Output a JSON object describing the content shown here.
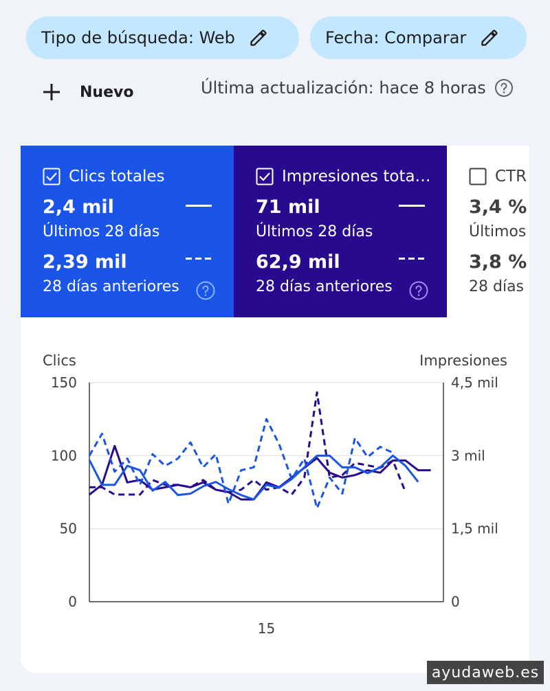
{
  "filters": {
    "search_type": "Tipo de búsqueda: Web",
    "date": "Fecha: Comparar"
  },
  "toolbar": {
    "new_label": "Nuevo",
    "last_update": "Última actualización: hace 8 horas"
  },
  "metrics": {
    "clicks": {
      "label": "Clics totales",
      "checked": true,
      "current_value": "2,4 mil",
      "current_period": "Últimos 28 días",
      "previous_value": "2,39 mil",
      "previous_period": "28 días anteriores",
      "color": "#1a55e8"
    },
    "impressions": {
      "label": "Impresiones tota…",
      "checked": true,
      "current_value": "71 mil",
      "current_period": "Últimos 28 días",
      "previous_value": "62,9 mil",
      "previous_period": "28 días anteriores",
      "color": "#280a8e"
    },
    "ctr": {
      "label": "CTR",
      "checked": false,
      "current_value": "3,4 %",
      "current_period": "Últimos",
      "previous_value": "3,8 %",
      "previous_period": "28 días"
    }
  },
  "chart_data": {
    "type": "line",
    "left_axis": {
      "label": "Clics",
      "ticks": [
        "0",
        "50",
        "100",
        "150"
      ],
      "range": [
        0,
        150
      ]
    },
    "right_axis": {
      "label": "Impresiones",
      "ticks": [
        "0",
        "1,5 mil",
        "3 mil",
        "4,5 mil"
      ],
      "range": [
        0,
        4500
      ]
    },
    "x_ticks": [
      {
        "day": 15,
        "label": "15"
      }
    ],
    "grid": true,
    "series": [
      {
        "axis": "right",
        "color": "#280a8e",
        "style": "solid",
        "values": [
          2200,
          2400,
          3200,
          2450,
          2500,
          2300,
          2350,
          2400,
          2350,
          2450,
          2300,
          2250,
          2100,
          2100,
          2450,
          2350,
          2550,
          2750,
          2950,
          2650,
          2550,
          2600,
          2700,
          2650,
          2900,
          2900,
          2700,
          2700
        ]
      },
      {
        "axis": "right",
        "color": "#280a8e",
        "style": "dashed",
        "values": [
          2350,
          2350,
          2200,
          2200,
          2200,
          2500,
          2400,
          2400,
          2350,
          2500,
          2300,
          2250,
          2300,
          2500,
          2300,
          2350,
          2200,
          2550,
          4300,
          2550,
          2600,
          2850,
          2800,
          2750,
          2900,
          2250
        ]
      },
      {
        "axis": "left",
        "color": "#1a55e8",
        "style": "solid",
        "values": [
          97,
          80,
          80,
          93,
          90,
          76,
          82,
          73,
          74,
          79,
          82,
          77,
          73,
          70,
          80,
          78,
          84,
          92,
          100,
          100,
          92,
          92,
          88,
          92,
          100,
          93,
          82
        ]
      },
      {
        "axis": "left",
        "color": "#1a55e8",
        "style": "dashed",
        "values": [
          100,
          115,
          89,
          98,
          80,
          101,
          93,
          98,
          109,
          92,
          101,
          67,
          90,
          92,
          125,
          108,
          84,
          98,
          64,
          85,
          74,
          112,
          99,
          106,
          102
        ]
      }
    ]
  },
  "watermark": "ayudaweb.es"
}
